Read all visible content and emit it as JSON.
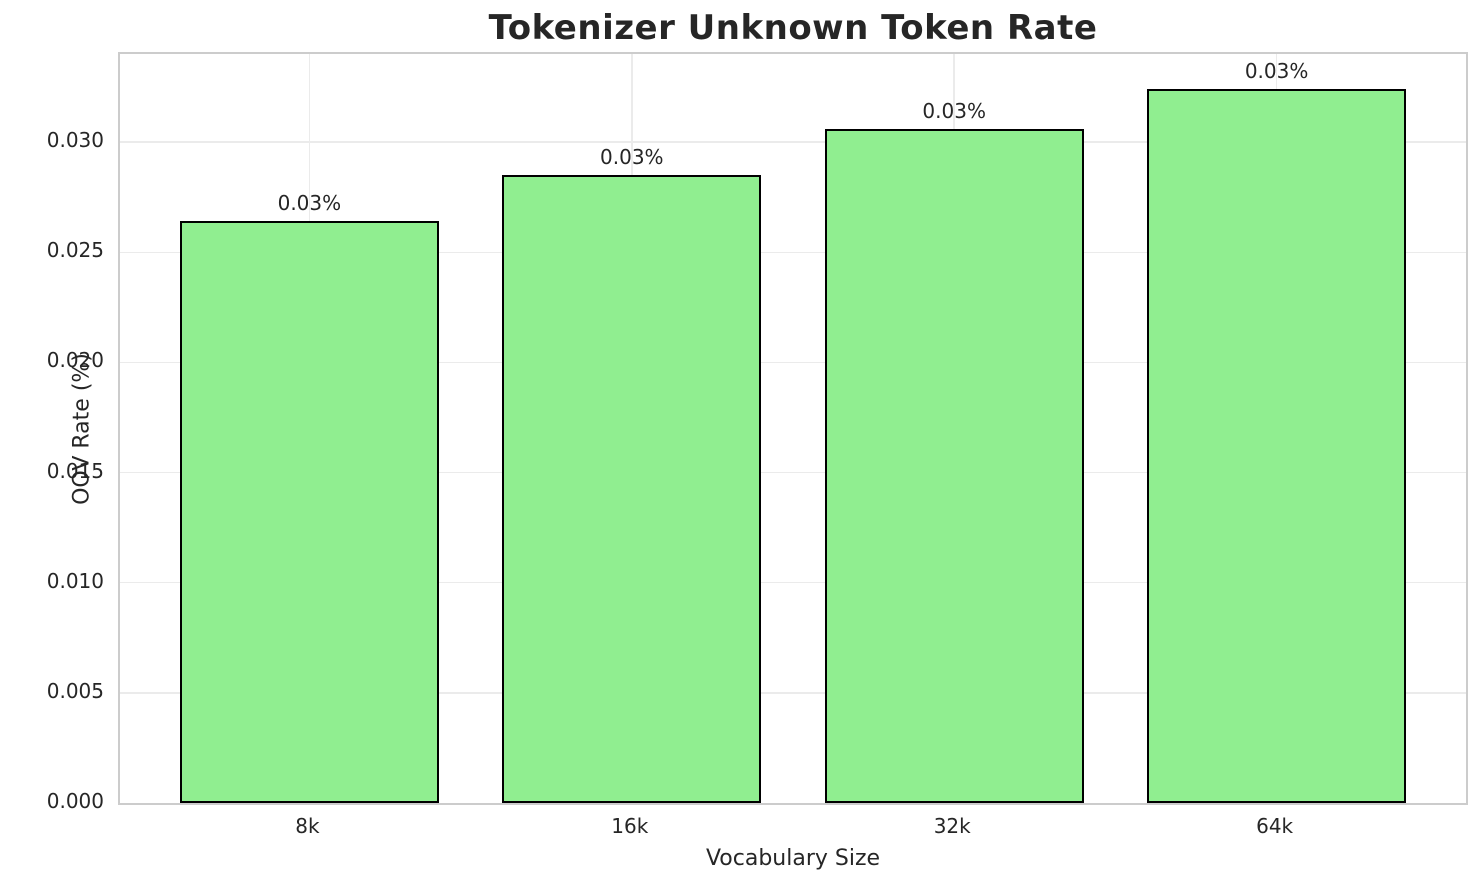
{
  "chart_data": {
    "type": "bar",
    "title": "Tokenizer Unknown Token Rate",
    "xlabel": "Vocabulary Size",
    "ylabel": "OOV Rate (%)",
    "categories": [
      "8k",
      "16k",
      "32k",
      "64k"
    ],
    "values": [
      0.0264,
      0.0285,
      0.0306,
      0.0324
    ],
    "bar_labels": [
      "0.03%",
      "0.03%",
      "0.03%",
      "0.03%"
    ],
    "ylim": [
      0,
      0.034
    ],
    "yticks": [
      0.0,
      0.005,
      0.01,
      0.015,
      0.02,
      0.025,
      0.03
    ],
    "ytick_labels": [
      "0.000",
      "0.005",
      "0.010",
      "0.015",
      "0.020",
      "0.025",
      "0.030"
    ],
    "grid": true,
    "legend_position": "none",
    "bar_color": "#90EE90",
    "bar_edge_color": "#000000",
    "grid_color": "#ebebeb",
    "text_color": "#262626"
  }
}
